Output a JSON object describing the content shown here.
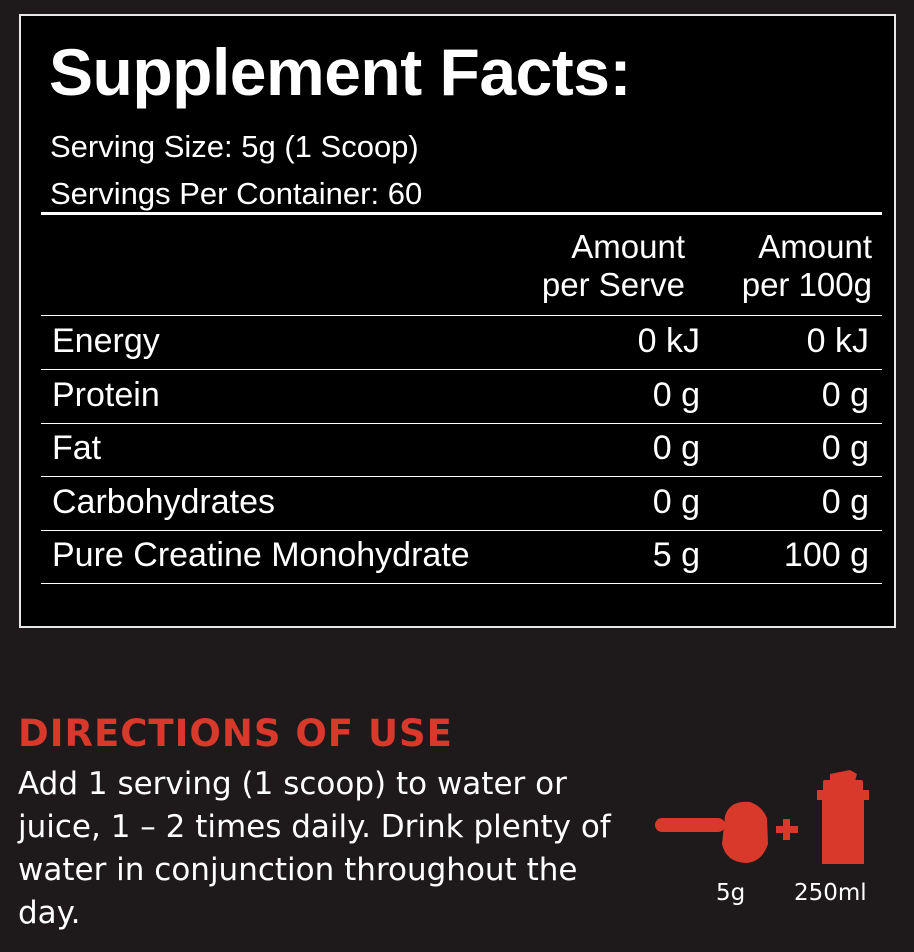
{
  "facts": {
    "title": "Supplement Facts:",
    "serving_size": "Serving Size: 5g (1 Scoop)",
    "servings_per_container": "Servings Per Container: 60",
    "columns": [
      {
        "line1": "Amount",
        "line2": "per Serve"
      },
      {
        "line1": "Amount",
        "line2": "per 100g"
      }
    ],
    "rows": [
      {
        "name": "Energy",
        "per_serve": "0 kJ",
        "per_100g": "0 kJ"
      },
      {
        "name": "Protein",
        "per_serve": "0 g",
        "per_100g": "0 g"
      },
      {
        "name": "Fat",
        "per_serve": "0 g",
        "per_100g": "0 g"
      },
      {
        "name": "Carbohydrates",
        "per_serve": "0 g",
        "per_100g": "0 g"
      },
      {
        "name": "Pure Creatine Monohydrate",
        "per_serve": "5 g",
        "per_100g": "100 g"
      }
    ]
  },
  "directions": {
    "heading": "DIRECTIONS OF USE",
    "body": "Add 1 serving (1 scoop) to water or juice, 1 – 2 times daily. Drink plenty of water in conjunction throughout the day.",
    "scoop_label": "5g",
    "shaker_label": "250ml",
    "icons": [
      "scoop-icon",
      "plus-icon",
      "shaker-icon"
    ]
  },
  "colors": {
    "accent": "#d9392b",
    "background": "#1e1a1b",
    "panel": "#000000"
  }
}
